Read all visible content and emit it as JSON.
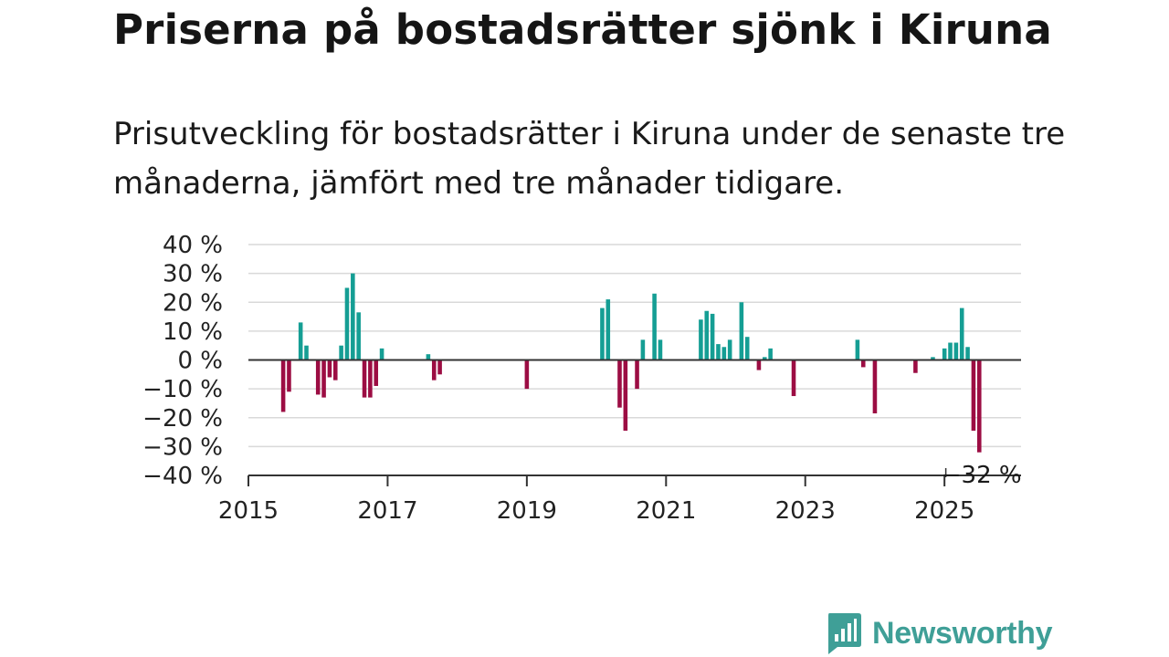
{
  "title": "Priserna på bostadsrätter sjönk i Kiruna",
  "subtitle": "Prisutveckling för bostadsrätter i Kiruna under de senaste tre månaderna, jämfört med tre månader tidigare.",
  "brand": {
    "name": "Newsworthy",
    "color": "#3f9f97"
  },
  "colors": {
    "positive": "#159e94",
    "negative": "#9c0d43",
    "grid": "#d9d9d9",
    "axis": "#333333"
  },
  "chart_data": {
    "type": "bar",
    "xlim": [
      2015,
      2026.1
    ],
    "ylim": [
      -40,
      40
    ],
    "yticks": [
      {
        "value": 40,
        "label": "40 %"
      },
      {
        "value": 30,
        "label": "30 %"
      },
      {
        "value": 20,
        "label": "20 %"
      },
      {
        "value": 10,
        "label": "10 %"
      },
      {
        "value": 0,
        "label": "0 %"
      },
      {
        "value": -10,
        "label": "−10 %"
      },
      {
        "value": -20,
        "label": "−20 %"
      },
      {
        "value": -30,
        "label": "−30 %"
      },
      {
        "value": -40,
        "label": "−40 %"
      }
    ],
    "xticks": [
      {
        "value": 2015,
        "label": "2015"
      },
      {
        "value": 2017,
        "label": "2017"
      },
      {
        "value": 2019,
        "label": "2019"
      },
      {
        "value": 2021,
        "label": "2021"
      },
      {
        "value": 2023,
        "label": "2023"
      },
      {
        "value": 2025,
        "label": "2025"
      }
    ],
    "grid": true,
    "annotation": {
      "x": 2025.5833,
      "y": -32,
      "label": "−32 %"
    },
    "points": [
      {
        "date": "2015-07",
        "value": -18
      },
      {
        "date": "2015-08",
        "value": -11
      },
      {
        "date": "2015-10",
        "value": 13
      },
      {
        "date": "2015-11",
        "value": 5
      },
      {
        "date": "2016-01",
        "value": -12
      },
      {
        "date": "2016-02",
        "value": -13
      },
      {
        "date": "2016-03",
        "value": -6
      },
      {
        "date": "2016-04",
        "value": -7
      },
      {
        "date": "2016-05",
        "value": 5
      },
      {
        "date": "2016-06",
        "value": 25
      },
      {
        "date": "2016-07",
        "value": 30
      },
      {
        "date": "2016-08",
        "value": 16.5
      },
      {
        "date": "2016-09",
        "value": -13
      },
      {
        "date": "2016-10",
        "value": -13
      },
      {
        "date": "2016-11",
        "value": -9
      },
      {
        "date": "2016-12",
        "value": 4
      },
      {
        "date": "2017-08",
        "value": 2
      },
      {
        "date": "2017-09",
        "value": -7
      },
      {
        "date": "2017-10",
        "value": -5
      },
      {
        "date": "2019-01",
        "value": -10
      },
      {
        "date": "2020-02",
        "value": 18
      },
      {
        "date": "2020-03",
        "value": 21
      },
      {
        "date": "2020-05",
        "value": -16.5
      },
      {
        "date": "2020-06",
        "value": -24.5
      },
      {
        "date": "2020-08",
        "value": -10
      },
      {
        "date": "2020-09",
        "value": 7
      },
      {
        "date": "2020-11",
        "value": 23
      },
      {
        "date": "2020-12",
        "value": 7
      },
      {
        "date": "2021-07",
        "value": 14
      },
      {
        "date": "2021-08",
        "value": 17
      },
      {
        "date": "2021-09",
        "value": 16
      },
      {
        "date": "2021-10",
        "value": 5.5
      },
      {
        "date": "2021-11",
        "value": 4.5
      },
      {
        "date": "2021-12",
        "value": 7
      },
      {
        "date": "2022-02",
        "value": 20
      },
      {
        "date": "2022-03",
        "value": 8
      },
      {
        "date": "2022-05",
        "value": -3.5
      },
      {
        "date": "2022-06",
        "value": 1
      },
      {
        "date": "2022-07",
        "value": 4
      },
      {
        "date": "2022-11",
        "value": -12.5
      },
      {
        "date": "2023-10",
        "value": 7
      },
      {
        "date": "2023-11",
        "value": -2.5
      },
      {
        "date": "2024-01",
        "value": -18.5
      },
      {
        "date": "2024-08",
        "value": -4.5
      },
      {
        "date": "2024-11",
        "value": 1
      },
      {
        "date": "2025-01",
        "value": 4
      },
      {
        "date": "2025-02",
        "value": 6
      },
      {
        "date": "2025-03",
        "value": 6
      },
      {
        "date": "2025-04",
        "value": 18
      },
      {
        "date": "2025-05",
        "value": 4.5
      },
      {
        "date": "2025-06",
        "value": -24.5
      },
      {
        "date": "2025-07",
        "value": -32
      }
    ]
  }
}
